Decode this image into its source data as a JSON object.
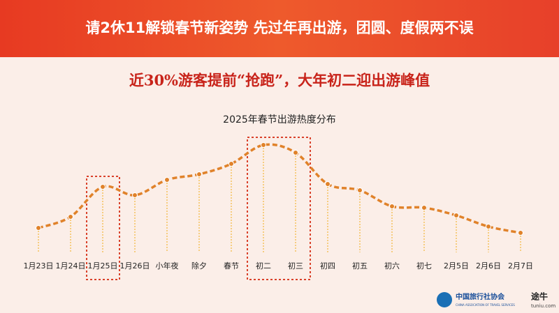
{
  "header": {
    "title": "请2休11解锁春节新姿势  先过年再出游，团圆、度假两不误"
  },
  "subtitle": "近30%游客提前“抢跑”，大年初二迎出游峰值",
  "chart_data": {
    "type": "line",
    "title": "2025年春节出游热度分布",
    "categories": [
      "1月23日",
      "1月24日",
      "1月25日",
      "1月26日",
      "小年夜",
      "除夕",
      "春节",
      "初二",
      "初三",
      "初四",
      "初五",
      "初六",
      "初七",
      "2月5日",
      "2月6日",
      "2月7日"
    ],
    "values": [
      35,
      51,
      94,
      82,
      104,
      112,
      127,
      154,
      143,
      98,
      89,
      66,
      64,
      53,
      37,
      28
    ],
    "color": "#e0822a",
    "ylim": [
      0,
      170
    ]
  },
  "footer": {
    "org": "中国旅行社协会",
    "org_en": "CHINA ASSOCIATION OF TRAVEL SERVICES",
    "brand": "途牛",
    "brand_url": "tuniu.com"
  }
}
